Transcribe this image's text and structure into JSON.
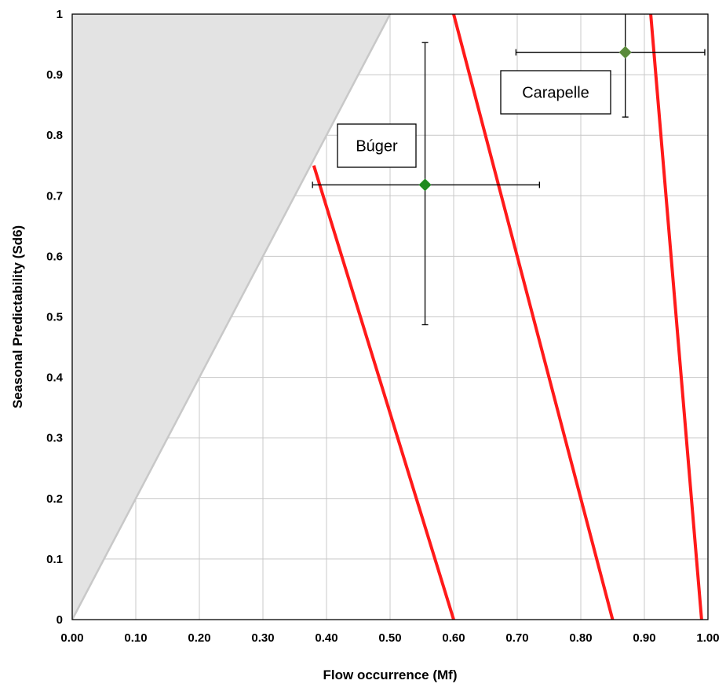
{
  "chart_data": {
    "type": "scatter",
    "xlabel": "Flow occurrence (Mf)",
    "ylabel": "Seasonal Predictability (Sd6)",
    "xlim": [
      0,
      1
    ],
    "ylim": [
      0,
      1
    ],
    "x_ticks": [
      "0.00",
      "0.10",
      "0.20",
      "0.30",
      "0.40",
      "0.50",
      "0.60",
      "0.70",
      "0.80",
      "0.90",
      "1.00"
    ],
    "y_ticks": [
      "0",
      "0.1",
      "0.2",
      "0.3",
      "0.4",
      "0.5",
      "0.6",
      "0.7",
      "0.8",
      "0.9",
      "1"
    ],
    "grid": true,
    "colors": {
      "shaded_region": "#e3e3e3",
      "shaded_edge": "#c8c8c8",
      "boundary_lines": "#ff1a1a",
      "point_buger": "#1f8a1f",
      "point_carapelle": "#5a8a3a",
      "error_bars": "#000000",
      "grid": "#c8c8c8"
    },
    "shaded_region": {
      "polygon": [
        [
          0,
          0
        ],
        [
          0,
          1
        ],
        [
          0.5,
          1
        ]
      ]
    },
    "boundary_lines": [
      {
        "from": [
          0.6,
          0
        ],
        "to": [
          0.38,
          0.75
        ]
      },
      {
        "from": [
          0.85,
          0
        ],
        "to": [
          0.6,
          1.0
        ]
      },
      {
        "from": [
          0.99,
          0
        ],
        "to": [
          0.91,
          1.0
        ]
      }
    ],
    "points": [
      {
        "label": "Búger",
        "x": 0.555,
        "y": 0.718,
        "x_err": [
          0.378,
          0.735
        ],
        "y_err": [
          0.487,
          0.953
        ]
      },
      {
        "label": "Carapelle",
        "x": 0.87,
        "y": 0.937,
        "x_err": [
          0.698,
          0.995
        ],
        "y_err": [
          0.83,
          1.0
        ]
      }
    ]
  }
}
